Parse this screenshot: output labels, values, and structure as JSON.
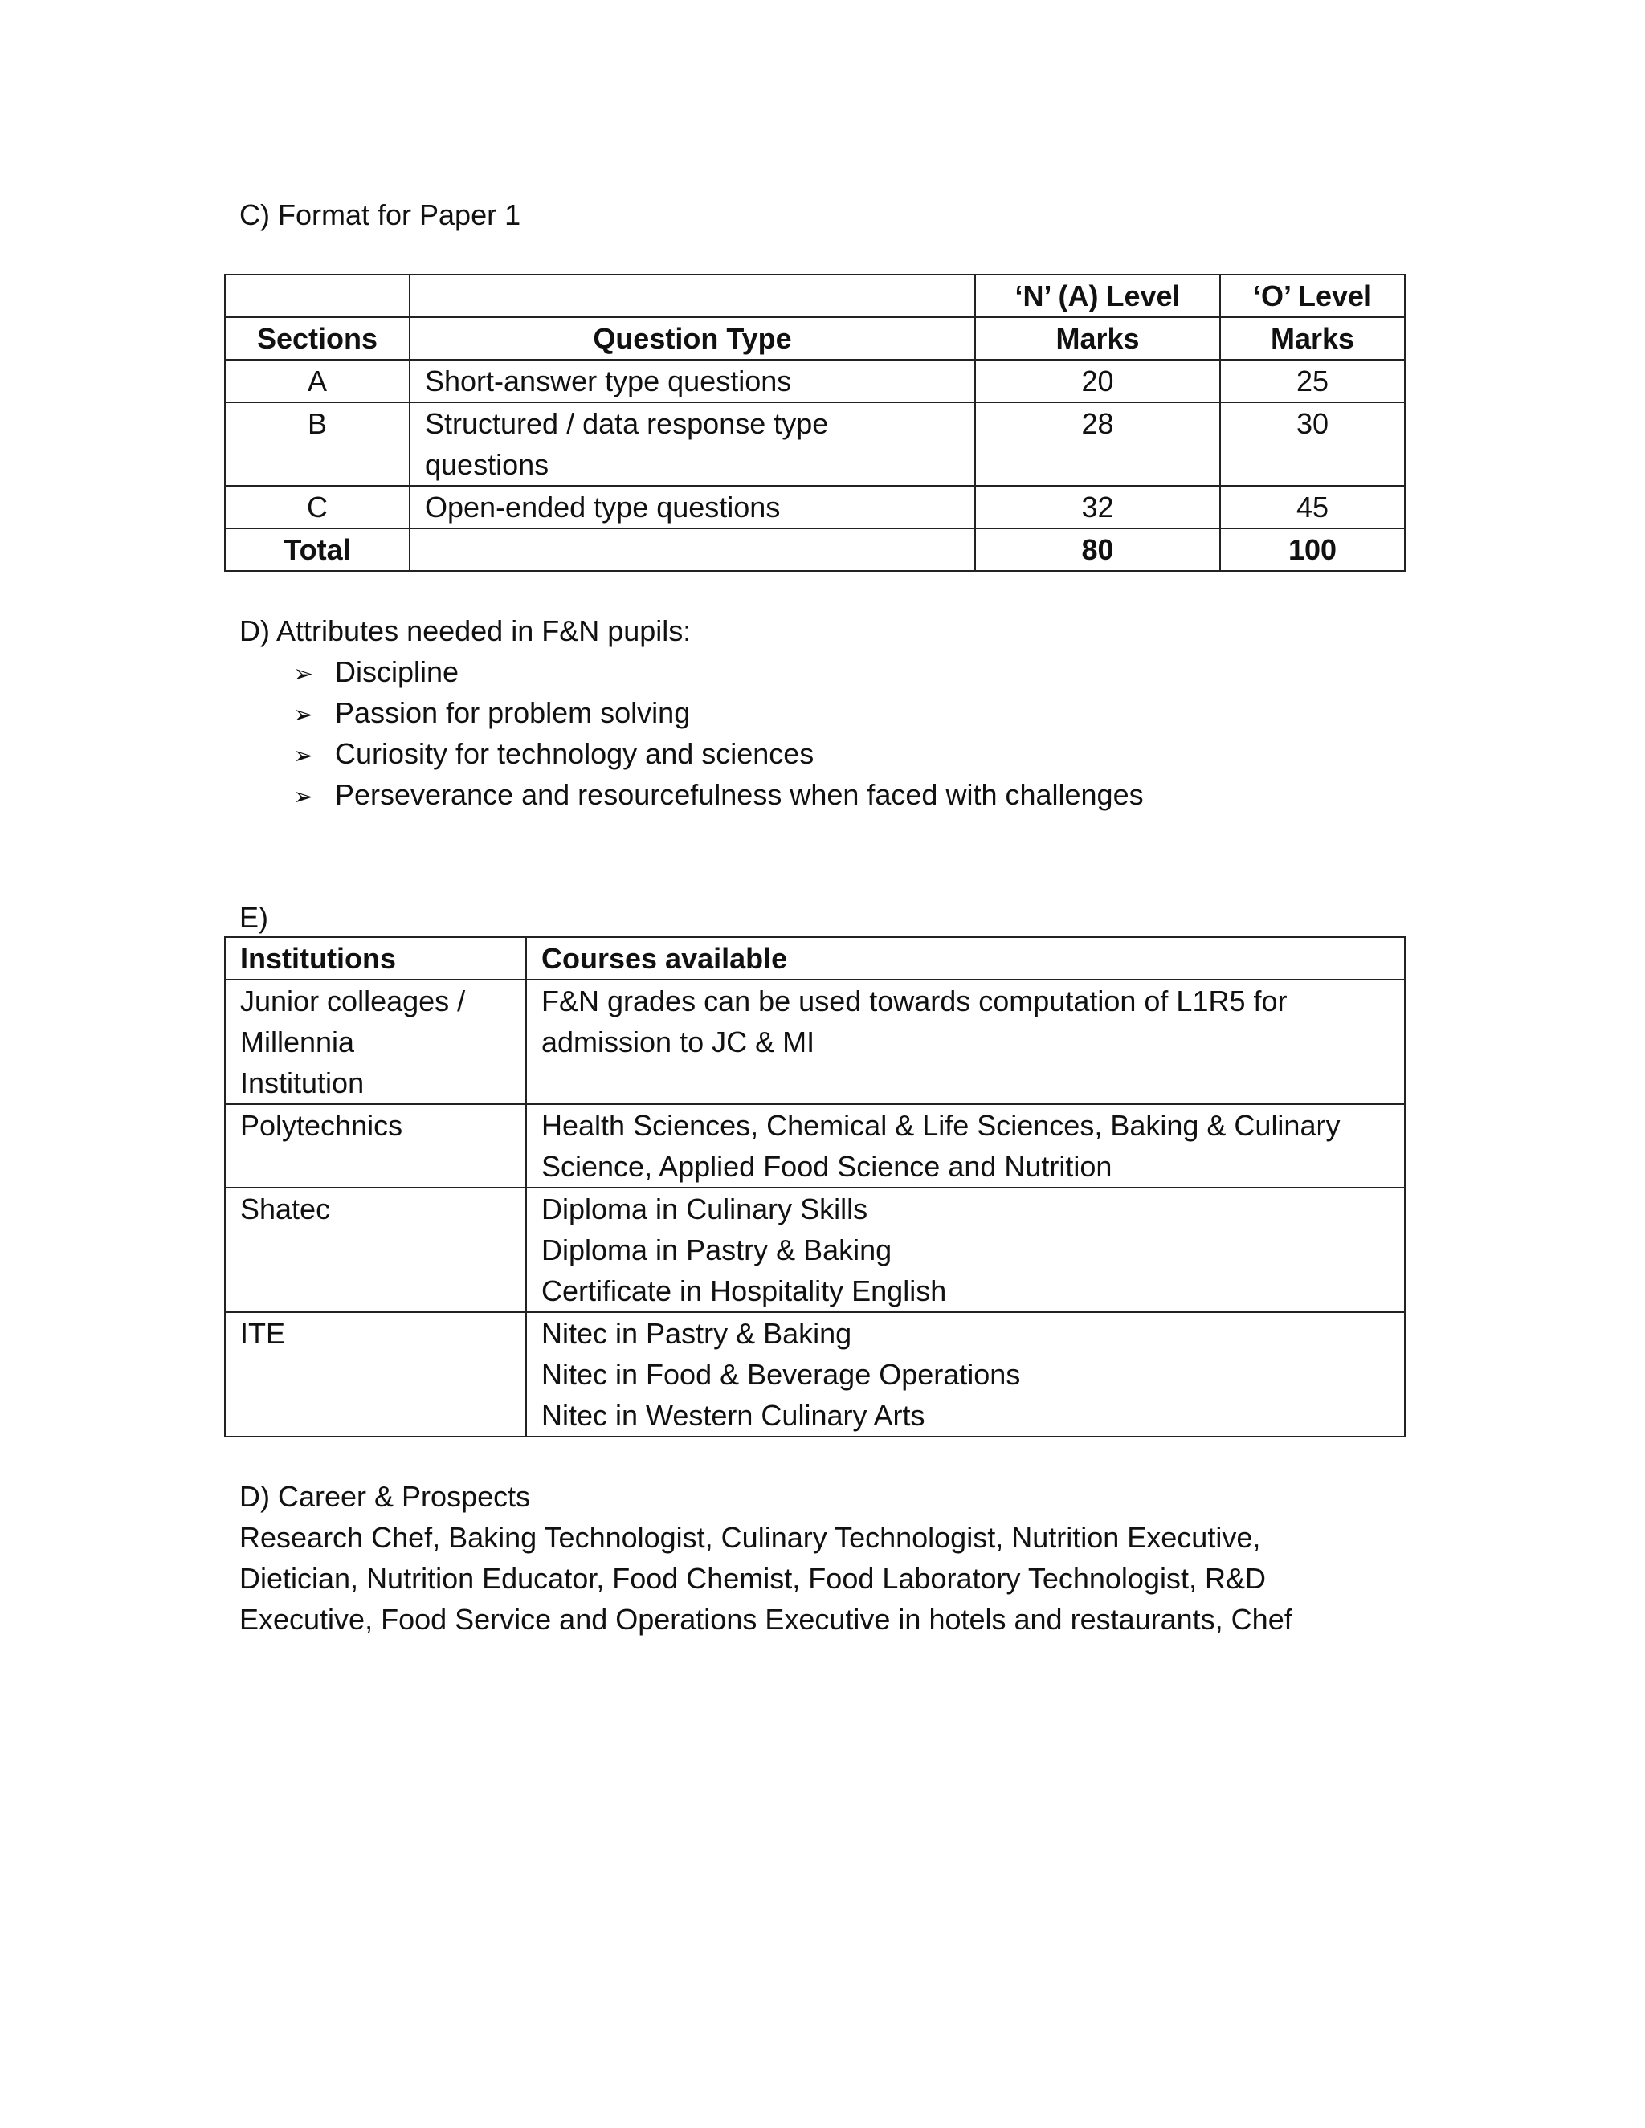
{
  "section_c": {
    "heading": "C) Format for Paper 1",
    "header_row1": [
      "",
      "",
      "‘N’ (A) Level",
      "‘O’ Level"
    ],
    "header_row2": [
      "Sections",
      "Question Type",
      "Marks",
      "Marks"
    ],
    "rows": [
      {
        "section": "A",
        "type": "Short-answer type questions",
        "n": "20",
        "o": "25"
      },
      {
        "section": "B",
        "type": "Structured / data response type",
        "type2": "questions",
        "n": "28",
        "o": "30"
      },
      {
        "section": "C",
        "type": "Open-ended type questions",
        "n": "32",
        "o": "45"
      }
    ],
    "total": {
      "label": "Total",
      "n": "80",
      "o": "100"
    }
  },
  "section_d": {
    "heading": "D) Attributes needed in F&N pupils:",
    "bullet_icon": "arrow-bullet",
    "items": [
      "Discipline",
      "Passion for problem solving",
      "Curiosity for technology and sciences",
      "Perseverance and resourcefulness when faced with challenges"
    ]
  },
  "section_e": {
    "heading": "E)",
    "headers": [
      "Institutions",
      "Courses available"
    ],
    "rows": [
      {
        "inst": [
          "Junior colleages /",
          "Millennia",
          "Institution"
        ],
        "courses": [
          "F&N grades can be used towards computation of L1R5 for",
          "admission to JC & MI"
        ]
      },
      {
        "inst": [
          "Polytechnics"
        ],
        "courses": [
          "Health Sciences, Chemical & Life Sciences, Baking & Culinary",
          "Science, Applied Food Science and Nutrition"
        ]
      },
      {
        "inst": [
          "Shatec"
        ],
        "courses": [
          "Diploma in Culinary Skills",
          "Diploma in Pastry & Baking",
          "Certificate in Hospitality English"
        ]
      },
      {
        "inst": [
          "ITE"
        ],
        "courses": [
          "Nitec in Pastry & Baking",
          "Nitec in Food & Beverage Operations",
          "Nitec in Western Culinary Arts"
        ]
      }
    ]
  },
  "career": {
    "heading": "D) Career & Prospects",
    "lines": [
      "Research Chef, Baking Technologist, Culinary Technologist, Nutrition Executive,",
      "Dietician, Nutrition Educator, Food Chemist, Food Laboratory Technologist, R&D",
      "Executive, Food Service and Operations Executive in hotels and restaurants, Chef"
    ]
  }
}
